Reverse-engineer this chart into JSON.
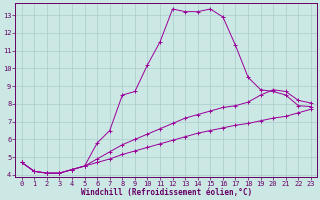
{
  "xlabel": "Windchill (Refroidissement éolien,°C)",
  "background_color": "#cce8e4",
  "grid_color": "#aacccc",
  "line_color": "#990099",
  "xlim": [
    -0.5,
    23.5
  ],
  "ylim": [
    3.9,
    13.7
  ],
  "yticks": [
    4,
    5,
    6,
    7,
    8,
    9,
    10,
    11,
    12,
    13
  ],
  "xticks": [
    0,
    1,
    2,
    3,
    4,
    5,
    6,
    7,
    8,
    9,
    10,
    11,
    12,
    13,
    14,
    15,
    16,
    17,
    18,
    19,
    20,
    21,
    22,
    23
  ],
  "series": [
    {
      "x": [
        0,
        1,
        2,
        3,
        4,
        5,
        6,
        7,
        8,
        9,
        10,
        11,
        12,
        13,
        14,
        15,
        16,
        17,
        18,
        19,
        20,
        21,
        22,
        23
      ],
      "y": [
        4.7,
        4.2,
        4.1,
        4.1,
        4.3,
        4.5,
        5.8,
        6.5,
        8.5,
        8.7,
        10.2,
        11.5,
        13.35,
        13.2,
        13.2,
        13.35,
        12.9,
        11.3,
        9.5,
        8.8,
        8.7,
        8.5,
        7.9,
        7.85
      ]
    },
    {
      "x": [
        0,
        1,
        2,
        3,
        4,
        5,
        6,
        7,
        8,
        9,
        10,
        11,
        12,
        13,
        14,
        15,
        16,
        17,
        18,
        19,
        20,
        21,
        22,
        23
      ],
      "y": [
        4.7,
        4.2,
        4.1,
        4.1,
        4.3,
        4.5,
        4.9,
        5.3,
        5.7,
        6.0,
        6.3,
        6.6,
        6.9,
        7.2,
        7.4,
        7.6,
        7.8,
        7.9,
        8.1,
        8.5,
        8.8,
        8.7,
        8.2,
        8.05
      ]
    },
    {
      "x": [
        0,
        1,
        2,
        3,
        4,
        5,
        6,
        7,
        8,
        9,
        10,
        11,
        12,
        13,
        14,
        15,
        16,
        17,
        18,
        19,
        20,
        21,
        22,
        23
      ],
      "y": [
        4.7,
        4.2,
        4.1,
        4.1,
        4.3,
        4.5,
        4.7,
        4.9,
        5.15,
        5.35,
        5.55,
        5.75,
        5.95,
        6.15,
        6.35,
        6.5,
        6.65,
        6.8,
        6.9,
        7.05,
        7.2,
        7.3,
        7.5,
        7.7
      ]
    }
  ]
}
